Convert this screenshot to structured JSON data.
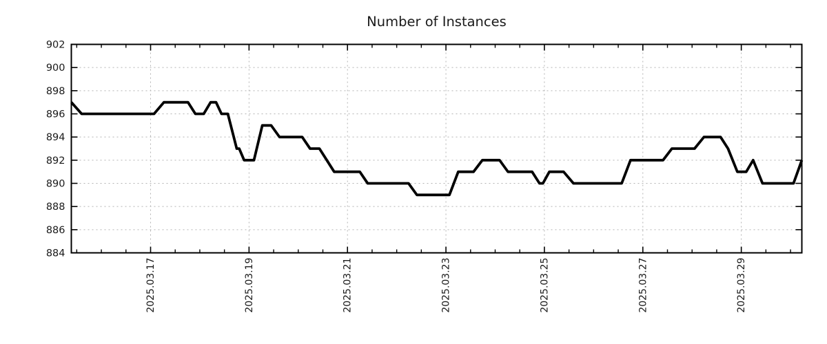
{
  "title": "Number of Instances",
  "colors": {
    "background": "#ffffff",
    "line": "#000000",
    "grid": "#b3b3b3",
    "axis": "#000000",
    "text": "#1a1a1a"
  },
  "chart_data": {
    "type": "line",
    "title": "Number of Instances",
    "style": "step-like time series, black solid line, dotted gray grid, mirrored inward ticks",
    "legend_position": "none",
    "grid": "dotted",
    "x_axis": {
      "unit": "day of March 2025 (decimal)",
      "range": [
        15.39,
        30.23
      ],
      "major_ticks": [
        {
          "value": 17,
          "label": "2025.03.17"
        },
        {
          "value": 19,
          "label": "2025.03.19"
        },
        {
          "value": 21,
          "label": "2025.03.21"
        },
        {
          "value": 23,
          "label": "2025.03.23"
        },
        {
          "value": 25,
          "label": "2025.03.25"
        },
        {
          "value": 27,
          "label": "2025.03.27"
        },
        {
          "value": 29,
          "label": "2025.03.29"
        }
      ],
      "minor_tick_interval": 0.5,
      "label_rotation_degrees": -90
    },
    "y_axis": {
      "range": [
        884,
        902
      ],
      "ticks": [
        884,
        886,
        888,
        890,
        892,
        894,
        896,
        898,
        900,
        902
      ],
      "tick_interval": 2
    },
    "series": [
      {
        "name": "Number of Instances",
        "color": "#000000",
        "points": [
          [
            15.39,
            897
          ],
          [
            15.6,
            896
          ],
          [
            17.07,
            896
          ],
          [
            17.27,
            897
          ],
          [
            17.76,
            897
          ],
          [
            17.91,
            896
          ],
          [
            18.08,
            896
          ],
          [
            18.22,
            897
          ],
          [
            18.33,
            897
          ],
          [
            18.44,
            896
          ],
          [
            18.57,
            896
          ],
          [
            18.75,
            893
          ],
          [
            18.8,
            893
          ],
          [
            18.9,
            892
          ],
          [
            19.1,
            892
          ],
          [
            19.27,
            895
          ],
          [
            19.45,
            895
          ],
          [
            19.62,
            894
          ],
          [
            20.08,
            894
          ],
          [
            20.24,
            893
          ],
          [
            20.43,
            893
          ],
          [
            20.58,
            892
          ],
          [
            20.73,
            891
          ],
          [
            21.25,
            891
          ],
          [
            21.41,
            890
          ],
          [
            22.24,
            890
          ],
          [
            22.41,
            889
          ],
          [
            23.07,
            889
          ],
          [
            23.25,
            891
          ],
          [
            23.56,
            891
          ],
          [
            23.74,
            892
          ],
          [
            24.09,
            892
          ],
          [
            24.26,
            891
          ],
          [
            24.75,
            891
          ],
          [
            24.9,
            890
          ],
          [
            24.97,
            890
          ],
          [
            25.1,
            891
          ],
          [
            25.39,
            891
          ],
          [
            25.59,
            890
          ],
          [
            26.57,
            890
          ],
          [
            26.75,
            892
          ],
          [
            27.41,
            892
          ],
          [
            27.59,
            893
          ],
          [
            28.05,
            893
          ],
          [
            28.24,
            894
          ],
          [
            28.58,
            894
          ],
          [
            28.73,
            893
          ],
          [
            28.92,
            891
          ],
          [
            29.1,
            891
          ],
          [
            29.24,
            892
          ],
          [
            29.43,
            890
          ],
          [
            30.06,
            890
          ],
          [
            30.23,
            892
          ]
        ]
      }
    ]
  }
}
